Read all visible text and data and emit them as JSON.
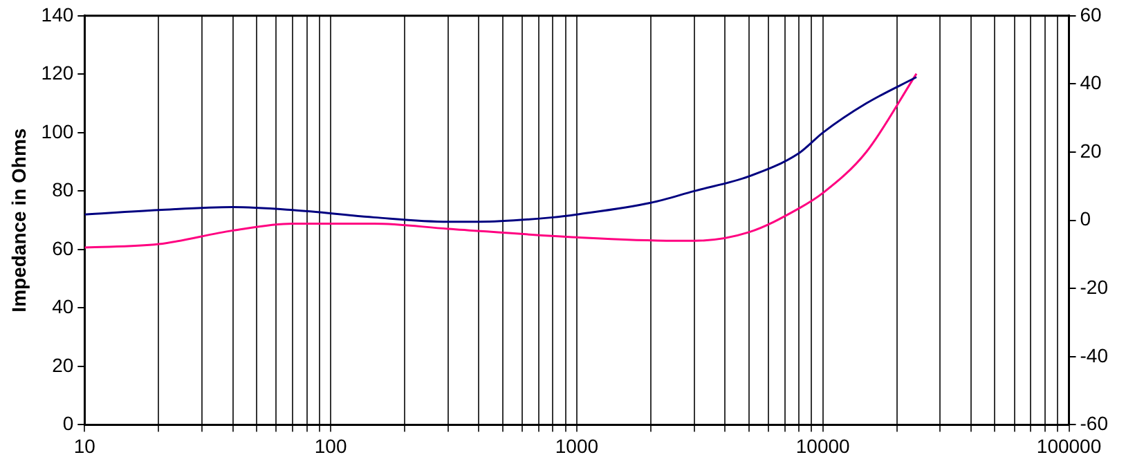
{
  "chart_data": {
    "type": "line",
    "ylabel": "Impedance in Ohms",
    "log": "x",
    "grid": "x",
    "legend": false,
    "marker": "none",
    "line_style": "solid",
    "xlim": [
      10,
      100000
    ],
    "xticks": [
      10,
      {
        "value": 20,
        "label": null
      },
      {
        "value": 30,
        "label": null
      },
      {
        "value": 40,
        "label": null
      },
      {
        "value": 50,
        "label": null
      },
      {
        "value": 60,
        "label": null
      },
      {
        "value": 70,
        "label": null
      },
      {
        "value": 80,
        "label": null
      },
      {
        "value": 90,
        "label": null
      },
      100,
      {
        "value": 200,
        "label": null
      },
      {
        "value": 300,
        "label": null
      },
      {
        "value": 400,
        "label": null
      },
      {
        "value": 500,
        "label": null
      },
      {
        "value": 600,
        "label": null
      },
      {
        "value": 700,
        "label": null
      },
      {
        "value": 800,
        "label": null
      },
      {
        "value": 900,
        "label": null
      },
      1000,
      {
        "value": 2000,
        "label": null
      },
      {
        "value": 3000,
        "label": null
      },
      {
        "value": 4000,
        "label": null
      },
      {
        "value": 5000,
        "label": null
      },
      {
        "value": 6000,
        "label": null
      },
      {
        "value": 7000,
        "label": null
      },
      {
        "value": 8000,
        "label": null
      },
      {
        "value": 9000,
        "label": null
      },
      10000,
      {
        "value": 20000,
        "label": null
      },
      {
        "value": 30000,
        "label": null
      },
      {
        "value": 40000,
        "label": null
      },
      {
        "value": 50000,
        "label": null
      },
      {
        "value": 60000,
        "label": null
      },
      {
        "value": 70000,
        "label": null
      },
      {
        "value": 80000,
        "label": null
      },
      {
        "value": 90000,
        "label": null
      },
      100000
    ],
    "ylim": [
      0,
      140
    ],
    "yticks": [
      0,
      20,
      40,
      60,
      80,
      100,
      120,
      140
    ],
    "y2lim": [
      -60,
      60
    ],
    "y2ticks": [
      -60,
      -40,
      -20,
      0,
      20,
      40,
      60
    ],
    "series": [
      {
        "color": "#000080",
        "x": [
          10,
          20,
          40,
          70,
          150,
          300,
          400,
          800,
          1000,
          2000,
          3000,
          5000,
          8000,
          10000,
          15000,
          24000
        ],
        "values": [
          72,
          73.5,
          74.5,
          73.5,
          71,
          69.5,
          69.5,
          71,
          72,
          76,
          80,
          85,
          93,
          100,
          110,
          119
        ]
      },
      {
        "color": "#ff0080",
        "axis": "y2",
        "x": [
          10,
          20,
          40,
          70,
          100,
          150,
          300,
          1000,
          2500,
          3000,
          5000,
          8000,
          10000,
          15000,
          24000
        ],
        "values": [
          -8,
          -7,
          -3,
          -1,
          -1,
          -1,
          -2.5,
          -5,
          -6,
          -6,
          -3.5,
          3.5,
          8,
          20,
          43
        ]
      }
    ]
  }
}
